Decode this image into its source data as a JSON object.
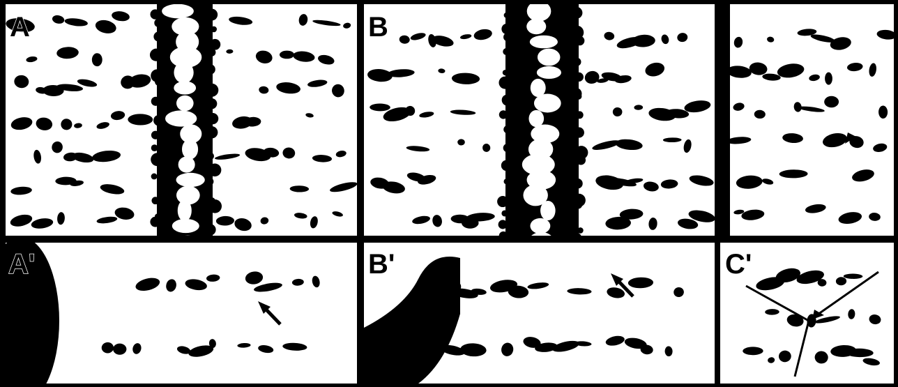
{
  "panels": [
    {
      "label": "A"
    },
    {
      "label": "B"
    },
    {
      "label": "A'"
    },
    {
      "label": "B'"
    },
    {
      "label": "C'"
    }
  ]
}
